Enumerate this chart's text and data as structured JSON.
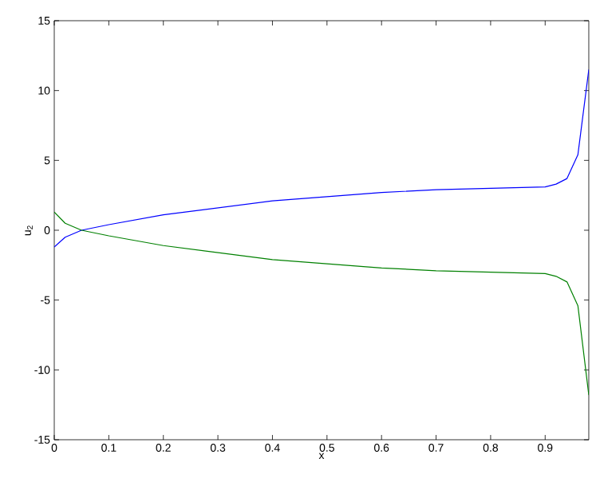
{
  "chart_data": {
    "type": "line",
    "xlabel": "x",
    "ylabel": "u$_{2}$",
    "x": [
      0,
      0.02,
      0.05,
      0.1,
      0.2,
      0.3,
      0.4,
      0.5,
      0.6,
      0.7,
      0.8,
      0.9,
      0.92,
      0.94,
      0.96,
      0.98
    ],
    "series": [
      {
        "color": "#0000ff",
        "values": [
          -1.2,
          -0.5,
          0,
          0.4,
          1.1,
          1.6,
          2.1,
          2.4,
          2.7,
          2.9,
          3,
          3.1,
          3.3,
          3.7,
          5.4,
          11.5
        ]
      },
      {
        "color": "#008000",
        "values": [
          1.3,
          0.5,
          0,
          -0.4,
          -1.1,
          -1.6,
          -2.1,
          -2.4,
          -2.7,
          -2.9,
          -3,
          -3.1,
          -3.3,
          -3.7,
          -5.4,
          -11.8
        ]
      }
    ],
    "xlim": [
      0,
      0.98
    ],
    "ylim": [
      -15,
      15
    ],
    "xticks": [
      0,
      0.1,
      0.2,
      0.3,
      0.4,
      0.5,
      0.6,
      0.7,
      0.8,
      0.9
    ],
    "yticks": [
      -15,
      -10,
      -5,
      0,
      5,
      10,
      15
    ]
  }
}
